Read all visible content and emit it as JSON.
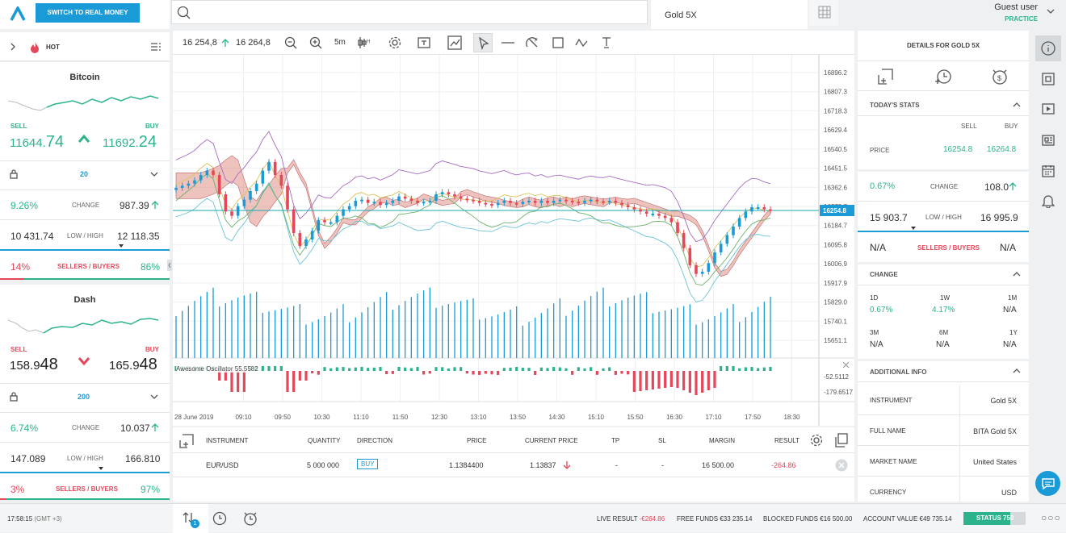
{
  "topbar": {
    "switch_label": "SWITCH TO REAL MONEY",
    "search_placeholder": "",
    "tab_label": "Gold 5X",
    "user_name": "Guest user",
    "user_mode": "PRACTICE"
  },
  "leftbar": {
    "hot_label": "HOT"
  },
  "assets": [
    {
      "name": "Bitcoin",
      "sell_label": "SELL",
      "buy_label": "BUY",
      "sell_small": "11644.",
      "sell_big": "74",
      "buy_small": "11692.",
      "buy_big": "24",
      "direction": "up",
      "leverage": "20",
      "change_pct": "9.26%",
      "change_label": "CHANGE",
      "change_val": "987.39",
      "low": "10 431.74",
      "lowhigh_label": "LOW / HIGH",
      "high": "12 118.35",
      "sellers_pct": "14%",
      "sellers_label": "SELLERS / BUYERS",
      "buyers_pct": "86%"
    },
    {
      "name": "Dash",
      "sell_label": "SELL",
      "buy_label": "BUY",
      "sell_small": "158.9",
      "sell_big": "48",
      "buy_small": "165.9",
      "buy_big": "48",
      "direction": "down",
      "leverage": "200",
      "change_pct": "6.74%",
      "change_label": "CHANGE",
      "change_val": "10.037",
      "low": "147.089",
      "lowhigh_label": "LOW / HIGH",
      "high": "166.810",
      "sellers_pct": "3%",
      "sellers_label": "SELLERS / BUYERS",
      "buyers_pct": "97%"
    }
  ],
  "toolbar": {
    "bid": "16 254,8",
    "ask": "16 264,8",
    "interval": "5m"
  },
  "chart_data": {
    "type": "candlestick",
    "price_axis": [
      "16896.2",
      "16807.3",
      "16718.3",
      "16629.4",
      "16540.5",
      "16451.5",
      "16362.6",
      "16273.7",
      "16184.7",
      "16095.8",
      "16006.9",
      "15917.9",
      "15829.0",
      "15740.1",
      "15651.1"
    ],
    "current_price": "16254.8",
    "oscillator_label": "Awesome Oscillator 55.5582",
    "oscillator_axis": [
      "-52.5112",
      "-179.6517"
    ],
    "time_axis": [
      "28 June 2019",
      "09:10",
      "09:50",
      "10:30",
      "11:10",
      "11:50",
      "12:30",
      "13:10",
      "13:50",
      "14:30",
      "15:10",
      "15:50",
      "16:30",
      "17:10",
      "17:50",
      "18:30"
    ],
    "closes": [
      16360,
      16370,
      16380,
      16395,
      16420,
      16440,
      16420,
      16330,
      16250,
      16230,
      16275,
      16305,
      16345,
      16380,
      16440,
      16480,
      16420,
      16370,
      16260,
      16150,
      16090,
      16120,
      16160,
      16210,
      16200,
      16200,
      16230,
      16260,
      16275,
      16300,
      16305,
      16290,
      16295,
      16280,
      16290,
      16300,
      16320,
      16310,
      16300,
      16290,
      16295,
      16300,
      16330,
      16340,
      16330,
      16320,
      16310,
      16305,
      16300,
      16290,
      16285,
      16280,
      16290,
      16300,
      16290,
      16285,
      16295,
      16300,
      16290,
      16300,
      16290,
      16300,
      16305,
      16300,
      16295,
      16290,
      16300,
      16305,
      16298,
      16295,
      16300,
      16290,
      16280,
      16270,
      16260,
      16250,
      16240,
      16240,
      16230,
      16220,
      16200,
      16150,
      16080,
      16000,
      15960,
      15970,
      16010,
      16060,
      16100,
      16140,
      16180,
      16220,
      16250,
      16270,
      16270,
      16260,
      16255
    ]
  },
  "positions": {
    "headers": [
      "INSTRUMENT",
      "QUANTITY",
      "DIRECTION",
      "PRICE",
      "CURRENT PRICE",
      "TP",
      "SL",
      "MARGIN",
      "RESULT"
    ],
    "rows": [
      {
        "instrument": "EUR/USD",
        "quantity": "5 000 000",
        "direction": "BUY",
        "price": "1.1384400",
        "current": "1.13837",
        "tp": "-",
        "sl": "-",
        "margin": "16 500.00",
        "result": "-264.86"
      }
    ]
  },
  "details": {
    "title": "DETAILS FOR",
    "asset": "GOLD 5X",
    "todays_stats": "TODAY'S STATS",
    "sell_label": "SELL",
    "buy_label": "BUY",
    "price_label": "PRICE",
    "sell_price": "16254.8",
    "buy_price": "16264.8",
    "change_pct": "0.67%",
    "change_label": "CHANGE",
    "change_val": "108.0",
    "low": "15 903.7",
    "lowhigh_label": "LOW / HIGH",
    "high": "16 995.9",
    "na": "N/A",
    "sellers_label": "SELLERS / BUYERS",
    "change_section": "CHANGE",
    "periods": [
      {
        "label": "1D",
        "value": "0.67%"
      },
      {
        "label": "1W",
        "value": "4.17%"
      },
      {
        "label": "1M",
        "value": "N/A"
      },
      {
        "label": "3M",
        "value": "N/A"
      },
      {
        "label": "6M",
        "value": "N/A"
      },
      {
        "label": "1Y",
        "value": "N/A"
      }
    ],
    "additional": "ADDITIONAL INFO",
    "info": [
      {
        "label": "INSTRUMENT",
        "value": "Gold 5X"
      },
      {
        "label": "FULL NAME",
        "value": "BITA Gold 5X"
      },
      {
        "label": "MARKET NAME",
        "value": "United States"
      },
      {
        "label": "CURRENCY",
        "value": "USD"
      }
    ]
  },
  "footer": {
    "time": "17:58:15",
    "tz": "(GMT +3)",
    "badge": "1",
    "live_label": "LIVE RESULT",
    "live_val": "-€264.86",
    "free_label": "FREE FUNDS",
    "free_val": "€33 235.14",
    "blocked_label": "BLOCKED FUNDS",
    "blocked_val": "€16 500.00",
    "account_label": "ACCOUNT VALUE",
    "account_val": "€49 735.14",
    "status": "STATUS 759"
  }
}
